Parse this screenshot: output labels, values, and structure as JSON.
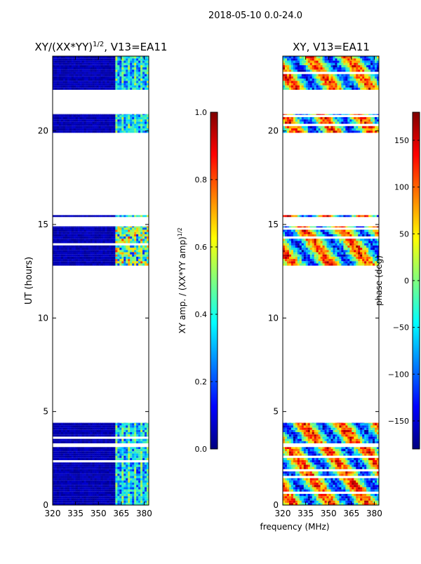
{
  "suptitle": "2018-05-10 0.0-24.0",
  "shared_xlabel": "frequency (MHz)",
  "colors": {
    "background_fill": "#00008f",
    "jet": [
      "#00007f",
      "#0000ff",
      "#007fff",
      "#00ffff",
      "#7fff7f",
      "#ffff00",
      "#ff7f00",
      "#ff0000",
      "#7f0000"
    ]
  },
  "chart_data": [
    {
      "type": "heatmap",
      "title_main": "XY/(XX*YY)",
      "title_sup": "1/2",
      "title_tail": ", V13=EA11",
      "xlabel": "",
      "ylabel": "UT (hours)",
      "xlim": [
        320,
        383
      ],
      "ylim": [
        0,
        24
      ],
      "xticks": [
        320,
        335,
        350,
        365,
        380
      ],
      "xtick_labels": [
        "320",
        "335",
        "350",
        "365",
        "380"
      ],
      "yticks": [
        0,
        5,
        10,
        15,
        20
      ],
      "ytick_labels": [
        "0",
        "5",
        "10",
        "15",
        "20"
      ],
      "data_bands_ut": [
        [
          0.0,
          3.1
        ],
        [
          3.3,
          4.4
        ],
        [
          12.8,
          14.9
        ],
        [
          15.4,
          15.5
        ],
        [
          19.9,
          20.9
        ],
        [
          22.2,
          24.0
        ]
      ],
      "active_freq_range_mhz": [
        360,
        382
      ],
      "colorbar": {
        "label_main": "XY amp. / (XX*YY amp)",
        "label_sup": "1/2",
        "range": [
          0.0,
          1.0
        ],
        "ticks": [
          0.0,
          0.2,
          0.4,
          0.6,
          0.8,
          1.0
        ],
        "tick_labels": [
          "0.0",
          "0.2",
          "0.4",
          "0.6",
          "0.8",
          "1.0"
        ]
      }
    },
    {
      "type": "heatmap",
      "title_main": "XY, V13=EA11",
      "xlabel": "",
      "ylabel": "",
      "xlim": [
        320,
        383
      ],
      "ylim": [
        0,
        24
      ],
      "xticks": [
        320,
        335,
        350,
        365,
        380
      ],
      "xtick_labels": [
        "320",
        "335",
        "350",
        "365",
        "380"
      ],
      "yticks": [
        0,
        5,
        10,
        15,
        20
      ],
      "ytick_labels": [
        "0",
        "5",
        "10",
        "15",
        "20"
      ],
      "data_bands_ut": [
        [
          0.0,
          3.1
        ],
        [
          3.3,
          4.4
        ],
        [
          12.8,
          14.9
        ],
        [
          15.4,
          15.5
        ],
        [
          19.9,
          20.9
        ],
        [
          22.2,
          24.0
        ]
      ],
      "colorbar": {
        "label_main": "phase (deg)",
        "range": [
          -180,
          180
        ],
        "ticks": [
          -150,
          -100,
          -50,
          0,
          50,
          100,
          150
        ],
        "tick_labels": [
          "−150",
          "−100",
          "−50",
          "0",
          "50",
          "100",
          "150"
        ]
      }
    }
  ]
}
